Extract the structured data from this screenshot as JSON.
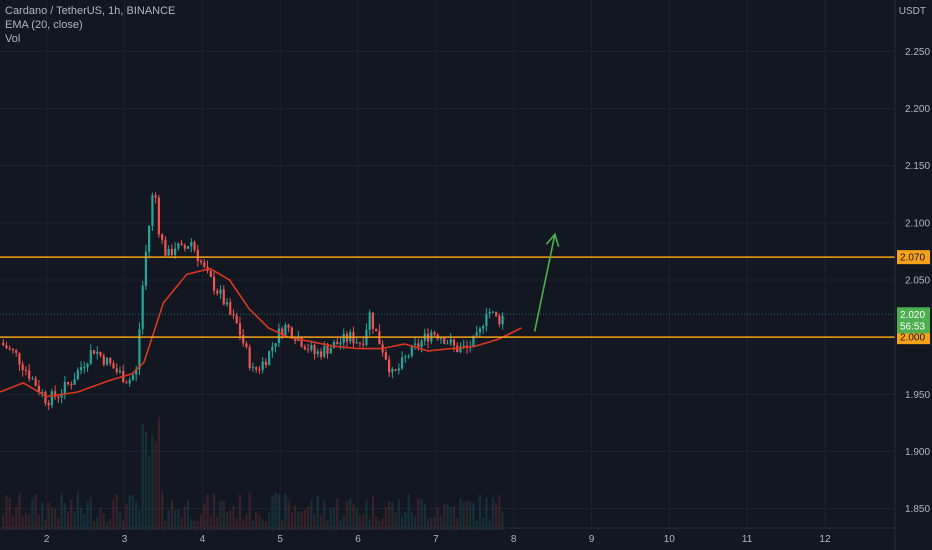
{
  "legend": {
    "symbol": "Cardano / TetherUS, 1h, BINANCE",
    "ema": "EMA (20, close)",
    "vol": "Vol"
  },
  "currency_label": "USDT",
  "colors": {
    "background": "#131722",
    "grid": "#1e2330",
    "up": "#26a69a",
    "down": "#ef5350",
    "ema": "#d8371f",
    "level": "#f7a21b",
    "arrow": "#4caf50",
    "price_tag": "#4caf50"
  },
  "chart_data": {
    "type": "candlestick",
    "y_ticks": [
      "2.250",
      "2.200",
      "2.150",
      "2.100",
      "2.050",
      "2.000",
      "1.950",
      "1.900",
      "1.850"
    ],
    "y_tick_values": [
      2.25,
      2.2,
      2.15,
      2.1,
      2.05,
      2.0,
      1.95,
      1.9,
      1.85
    ],
    "ylim": [
      1.833,
      2.295
    ],
    "x_ticks": [
      "2",
      "3",
      "4",
      "5",
      "6",
      "7",
      "8",
      "9",
      "10",
      "11",
      "12"
    ],
    "xlim": [
      1.4,
      12.9
    ],
    "horizontal_levels": [
      {
        "value": 2.07,
        "label": "2.070"
      },
      {
        "value": 2.0,
        "label": "2.000"
      }
    ],
    "last_price": {
      "value": 2.02,
      "label": "2.020",
      "countdown": "56:53"
    },
    "arrow": {
      "from": [
        8.27,
        2.005
      ],
      "to": [
        8.53,
        2.09
      ]
    },
    "price_path": [
      [
        1.4,
        1.995
      ],
      [
        1.6,
        1.985
      ],
      [
        1.75,
        1.97
      ],
      [
        1.9,
        1.955
      ],
      [
        2.0,
        1.945
      ],
      [
        2.15,
        1.95
      ],
      [
        2.3,
        1.96
      ],
      [
        2.45,
        1.975
      ],
      [
        2.6,
        1.99
      ],
      [
        2.75,
        1.98
      ],
      [
        2.9,
        1.97
      ],
      [
        3.05,
        1.962
      ],
      [
        3.15,
        1.97
      ],
      [
        3.25,
        2.06
      ],
      [
        3.32,
        2.1
      ],
      [
        3.38,
        2.135
      ],
      [
        3.45,
        2.09
      ],
      [
        3.55,
        2.07
      ],
      [
        3.65,
        2.08
      ],
      [
        3.75,
        2.075
      ],
      [
        3.85,
        2.085
      ],
      [
        3.95,
        2.07
      ],
      [
        4.05,
        2.055
      ],
      [
        4.15,
        2.045
      ],
      [
        4.25,
        2.035
      ],
      [
        4.35,
        2.02
      ],
      [
        4.45,
        2.01
      ],
      [
        4.55,
        1.99
      ],
      [
        4.65,
        1.97
      ],
      [
        4.75,
        1.975
      ],
      [
        4.85,
        1.985
      ],
      [
        4.95,
        2.0
      ],
      [
        5.05,
        2.01
      ],
      [
        5.15,
        2.005
      ],
      [
        5.3,
        1.995
      ],
      [
        5.45,
        1.985
      ],
      [
        5.6,
        1.99
      ],
      [
        5.75,
        1.995
      ],
      [
        5.9,
        2.0
      ],
      [
        6.05,
        1.995
      ],
      [
        6.15,
        2.02
      ],
      [
        6.25,
        2.0
      ],
      [
        6.35,
        1.985
      ],
      [
        6.45,
        1.965
      ],
      [
        6.55,
        1.975
      ],
      [
        6.65,
        1.985
      ],
      [
        6.8,
        1.995
      ],
      [
        6.95,
        2.005
      ],
      [
        7.1,
        2.0
      ],
      [
        7.25,
        1.99
      ],
      [
        7.4,
        1.99
      ],
      [
        7.55,
        2.0
      ],
      [
        7.65,
        2.025
      ],
      [
        7.8,
        2.015
      ],
      [
        7.9,
        2.02
      ]
    ],
    "ema_path": [
      [
        1.4,
        1.952
      ],
      [
        1.7,
        1.96
      ],
      [
        2.0,
        1.948
      ],
      [
        2.4,
        1.952
      ],
      [
        2.8,
        1.962
      ],
      [
        3.1,
        1.968
      ],
      [
        3.25,
        1.978
      ],
      [
        3.5,
        2.03
      ],
      [
        3.8,
        2.055
      ],
      [
        4.1,
        2.06
      ],
      [
        4.35,
        2.05
      ],
      [
        4.6,
        2.025
      ],
      [
        4.85,
        2.008
      ],
      [
        5.1,
        2.0
      ],
      [
        5.4,
        1.996
      ],
      [
        5.7,
        1.992
      ],
      [
        6.0,
        1.99
      ],
      [
        6.3,
        1.99
      ],
      [
        6.6,
        1.994
      ],
      [
        6.9,
        1.988
      ],
      [
        7.2,
        1.99
      ],
      [
        7.5,
        1.992
      ],
      [
        7.8,
        1.998
      ],
      [
        8.1,
        2.008
      ]
    ]
  }
}
